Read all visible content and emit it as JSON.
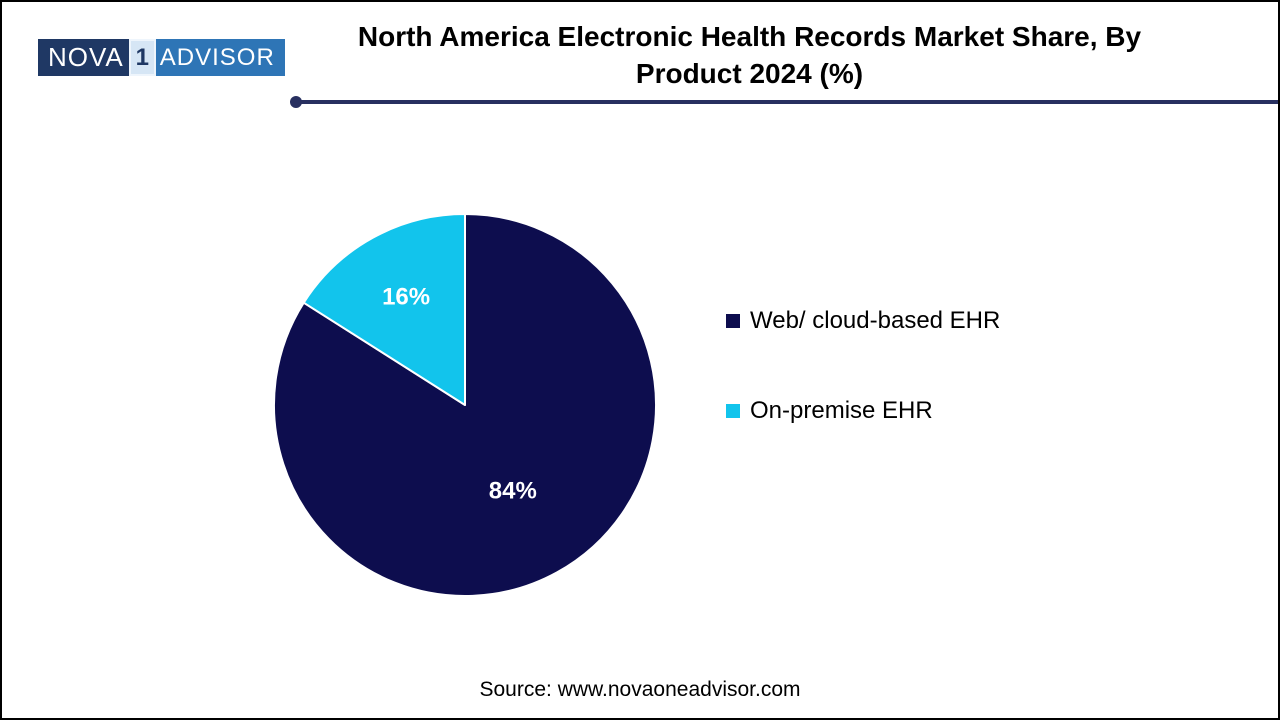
{
  "logo": {
    "nova": "NOVA",
    "one": "1",
    "advisor": "ADVISOR"
  },
  "title_lines": [
    "North America Electronic Health Records Market Share, By",
    "Product 2024 (%)"
  ],
  "source": "Source: www.novaoneadvisor.com",
  "colors": {
    "logo_navy": "#1F3864",
    "logo_blue": "#2E75B6",
    "logo_badge_bg": "#D6E6F5",
    "rule": "#283060"
  },
  "chart_data": {
    "type": "pie",
    "title": "North America Electronic Health Records Market Share, By Product 2024 (%)",
    "labels": [
      "Web/ cloud-based EHR",
      "On-premise EHR"
    ],
    "values": [
      84,
      16
    ],
    "value_labels": [
      "84%",
      "16%"
    ],
    "colors": [
      "#0D0D4E",
      "#12C4EC"
    ],
    "start_angle_deg": 0,
    "direction": "clockwise",
    "legend_position": "right",
    "slice_label_color": "#FFFFFF",
    "slice_separator_color": "#FFFFFF"
  }
}
